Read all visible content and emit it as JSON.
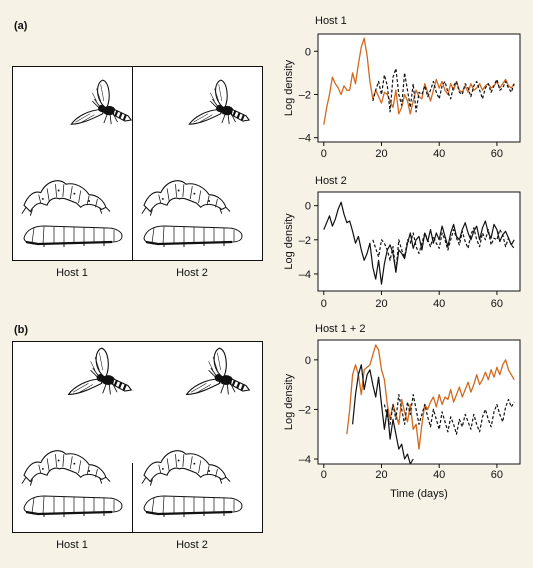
{
  "panels": {
    "a": {
      "label": "(a)",
      "cage_labels": [
        "Host 1",
        "Host 2"
      ]
    },
    "b": {
      "label": "(b)",
      "cage_labels": [
        "Host 1",
        "Host 2"
      ]
    }
  },
  "colors": {
    "background": "#f6f2e6",
    "host1": "#d2691e",
    "host2": "#111111",
    "parasitoid": "#111111"
  },
  "icons": [
    "parasitoid-wasp-icon",
    "caterpillar-host-icon",
    "grub-host-icon"
  ],
  "chart_data": [
    {
      "type": "line",
      "title": "Host 1",
      "xlabel": "",
      "ylabel": "Log density",
      "xlim": [
        -2,
        68
      ],
      "ylim": [
        -4.2,
        0.8
      ],
      "xticks": [
        0,
        20,
        40,
        60
      ],
      "yticks": [
        0,
        -2,
        -4
      ],
      "series": [
        {
          "style": "solid-orange",
          "x": [
            0,
            1,
            2,
            3,
            4,
            5,
            6,
            7,
            8,
            9,
            10,
            11,
            12,
            13,
            14,
            15,
            16,
            17,
            18,
            19,
            20,
            21,
            22,
            23,
            24,
            25,
            26,
            27,
            28,
            29,
            30,
            31,
            32,
            33,
            34,
            35,
            36,
            37,
            38,
            39,
            40,
            41,
            42,
            43,
            44,
            45,
            46,
            47,
            48,
            49,
            50,
            51,
            52,
            53,
            54,
            55,
            56,
            57,
            58,
            59,
            60,
            61,
            62,
            63,
            64,
            65,
            66
          ],
          "y": [
            -3.4,
            -2.6,
            -2.0,
            -1.2,
            -1.5,
            -1.7,
            -2.0,
            -1.6,
            -1.8,
            -1.8,
            -1.0,
            -1.5,
            -0.6,
            0.2,
            0.6,
            -0.2,
            -1.4,
            -2.2,
            -1.8,
            -2.1,
            -2.4,
            -1.9,
            -2.0,
            -2.3,
            -2.6,
            -1.8,
            -2.9,
            -2.6,
            -2.0,
            -2.3,
            -2.9,
            -2.3,
            -1.8,
            -2.1,
            -2.2,
            -1.5,
            -1.9,
            -2.3,
            -1.8,
            -1.3,
            -1.7,
            -1.4,
            -1.8,
            -2.0,
            -1.5,
            -1.8,
            -1.4,
            -1.8,
            -1.9,
            -1.6,
            -1.9,
            -1.5,
            -1.8,
            -1.7,
            -1.5,
            -1.8,
            -1.6,
            -1.5,
            -1.7,
            -1.6,
            -1.4,
            -1.7,
            -1.5,
            -1.3,
            -1.6,
            -1.7,
            -1.5
          ]
        },
        {
          "style": "dashed-black",
          "x": [
            17,
            18,
            19,
            20,
            21,
            22,
            23,
            24,
            25,
            26,
            27,
            28,
            29,
            30,
            31,
            32,
            33,
            34,
            35,
            36,
            37,
            38,
            39,
            40,
            41,
            42,
            43,
            44,
            45,
            46,
            47,
            48,
            49,
            50,
            51,
            52,
            53,
            54,
            55,
            56,
            57,
            58,
            59,
            60,
            61,
            62,
            63,
            64,
            65,
            66
          ],
          "y": [
            -2.3,
            -1.8,
            -1.4,
            -2.0,
            -1.1,
            -1.6,
            -2.8,
            -1.2,
            -0.8,
            -2.0,
            -2.5,
            -1.0,
            -1.8,
            -2.6,
            -1.5,
            -2.8,
            -1.9,
            -2.0,
            -1.6,
            -2.1,
            -1.8,
            -1.4,
            -1.9,
            -2.2,
            -1.6,
            -1.4,
            -1.9,
            -2.2,
            -1.6,
            -1.4,
            -1.9,
            -2.0,
            -1.5,
            -1.7,
            -2.1,
            -1.6,
            -1.4,
            -1.8,
            -2.2,
            -1.7,
            -1.5,
            -1.9,
            -1.6,
            -1.3,
            -1.8,
            -1.7,
            -1.4,
            -1.7,
            -1.9,
            -1.5
          ]
        }
      ]
    },
    {
      "type": "line",
      "title": "Host 2",
      "xlabel": "",
      "ylabel": "Log density",
      "xlim": [
        -2,
        68
      ],
      "ylim": [
        -5.0,
        0.8
      ],
      "xticks": [
        0,
        20,
        40,
        60
      ],
      "yticks": [
        0,
        -2,
        -4
      ],
      "series": [
        {
          "style": "solid-black",
          "x": [
            0,
            1,
            2,
            3,
            4,
            5,
            6,
            7,
            8,
            9,
            10,
            11,
            12,
            13,
            14,
            15,
            16,
            17,
            18,
            19,
            20,
            21,
            22,
            23,
            24,
            25,
            26,
            27,
            28,
            29,
            30,
            31,
            32,
            33,
            34,
            35,
            36,
            37,
            38,
            39,
            40,
            41,
            42,
            43,
            44,
            45,
            46,
            47,
            48,
            49,
            50,
            51,
            52,
            53,
            54,
            55,
            56,
            57,
            58,
            59,
            60,
            61,
            62,
            63,
            64,
            65,
            66
          ],
          "y": [
            -1.4,
            -1.0,
            -0.6,
            -1.2,
            -0.8,
            -0.2,
            0.2,
            -0.5,
            -1.0,
            -0.9,
            -1.5,
            -2.2,
            -1.8,
            -2.6,
            -3.2,
            -2.8,
            -2.2,
            -3.6,
            -4.3,
            -3.2,
            -4.6,
            -3.4,
            -2.6,
            -2.3,
            -2.8,
            -3.9,
            -2.6,
            -2.8,
            -3.1,
            -2.2,
            -1.6,
            -2.5,
            -2.0,
            -1.8,
            -2.6,
            -1.6,
            -2.1,
            -1.4,
            -2.2,
            -1.6,
            -2.0,
            -1.2,
            -1.8,
            -2.4,
            -1.6,
            -1.1,
            -1.8,
            -2.0,
            -1.4,
            -1.0,
            -1.6,
            -2.0,
            -1.5,
            -1.2,
            -2.0,
            -1.3,
            -0.9,
            -1.6,
            -1.9,
            -1.1,
            -1.4,
            -2.1,
            -1.7,
            -1.5,
            -1.9,
            -2.3,
            -2.0
          ]
        },
        {
          "style": "dashed-black",
          "x": [
            17,
            18,
            19,
            20,
            21,
            22,
            23,
            24,
            25,
            26,
            27,
            28,
            29,
            30,
            31,
            32,
            33,
            34,
            35,
            36,
            37,
            38,
            39,
            40,
            41,
            42,
            43,
            44,
            45,
            46,
            47,
            48,
            49,
            50,
            51,
            52,
            53,
            54,
            55,
            56,
            57,
            58,
            59,
            60,
            61,
            62,
            63,
            64,
            65,
            66
          ],
          "y": [
            -2.0,
            -2.5,
            -3.0,
            -2.0,
            -2.2,
            -2.6,
            -3.2,
            -2.4,
            -3.9,
            -2.0,
            -2.6,
            -3.0,
            -2.0,
            -2.2,
            -1.6,
            -2.4,
            -2.8,
            -2.2,
            -1.6,
            -2.0,
            -2.4,
            -1.8,
            -2.2,
            -2.5,
            -1.6,
            -2.0,
            -2.6,
            -2.0,
            -1.4,
            -1.9,
            -2.3,
            -1.5,
            -2.1,
            -2.5,
            -1.7,
            -1.3,
            -2.0,
            -2.4,
            -1.6,
            -2.0,
            -1.4,
            -2.3,
            -1.9,
            -2.0,
            -1.4,
            -1.7,
            -2.4,
            -1.9,
            -2.3,
            -2.5
          ]
        }
      ]
    },
    {
      "type": "line",
      "title": "Host 1 + 2",
      "xlabel": "Time (days)",
      "ylabel": "Log density",
      "xlim": [
        -2,
        68
      ],
      "ylim": [
        -4.2,
        0.8
      ],
      "xticks": [
        0,
        20,
        40,
        60
      ],
      "yticks": [
        0,
        -2,
        -4
      ],
      "series": [
        {
          "style": "solid-orange",
          "x": [
            8,
            9,
            10,
            11,
            12,
            13,
            14,
            15,
            16,
            17,
            18,
            19,
            20,
            21,
            22,
            23,
            24,
            25,
            26,
            27,
            28,
            29,
            30,
            31,
            32,
            33,
            34,
            35,
            36,
            37,
            38,
            39,
            40,
            41,
            42,
            43,
            44,
            45,
            46,
            47,
            48,
            49,
            50,
            51,
            52,
            53,
            54,
            55,
            56,
            57,
            58,
            59,
            60,
            61,
            62,
            63,
            64,
            65,
            66
          ],
          "y": [
            -3.0,
            -2.0,
            -0.6,
            -0.2,
            -0.6,
            -1.4,
            -0.4,
            -0.3,
            -0.2,
            0.2,
            0.6,
            0.4,
            -0.4,
            -0.8,
            -1.8,
            -2.4,
            -1.8,
            -2.2,
            -2.6,
            -1.6,
            -2.1,
            -2.5,
            -1.8,
            -2.8,
            -2.6,
            -3.6,
            -2.6,
            -1.8,
            -2.0,
            -1.7,
            -1.5,
            -1.9,
            -1.4,
            -1.8,
            -1.5,
            -1.6,
            -1.2,
            -1.7,
            -1.4,
            -1.1,
            -1.5,
            -1.2,
            -0.9,
            -1.3,
            -1.0,
            -0.6,
            -1.0,
            -0.8,
            -0.5,
            -0.8,
            -0.4,
            -0.7,
            -0.3,
            -0.6,
            -0.2,
            0.0,
            -0.4,
            -0.6,
            -0.8
          ]
        },
        {
          "style": "solid-black",
          "x": [
            10,
            11,
            12,
            13,
            14,
            15,
            16,
            17,
            18,
            19,
            20,
            21,
            22,
            23,
            24,
            25,
            26,
            27,
            28,
            29,
            30,
            31
          ],
          "y": [
            -2.6,
            -1.4,
            -0.6,
            -0.2,
            -1.2,
            -0.6,
            -0.4,
            -1.0,
            -1.5,
            -0.7,
            -1.8,
            -2.8,
            -2.0,
            -3.2,
            -2.4,
            -3.0,
            -3.6,
            -3.4,
            -4.0,
            -3.8,
            -4.2,
            -4.0
          ]
        },
        {
          "style": "dashed-black",
          "x": [
            21,
            22,
            23,
            24,
            25,
            26,
            27,
            28,
            29,
            30,
            31,
            32,
            33,
            34,
            35,
            36,
            37,
            38,
            39,
            40,
            41,
            42,
            43,
            44,
            45,
            46,
            47,
            48,
            49,
            50,
            51,
            52,
            53,
            54,
            55,
            56,
            57,
            58,
            59,
            60,
            61,
            62,
            63,
            64,
            65,
            66
          ],
          "y": [
            -1.8,
            -2.3,
            -2.6,
            -1.8,
            -2.4,
            -1.4,
            -2.0,
            -2.6,
            -1.7,
            -2.2,
            -1.4,
            -2.0,
            -2.6,
            -2.2,
            -1.8,
            -2.3,
            -2.7,
            -2.0,
            -2.4,
            -2.8,
            -2.1,
            -2.5,
            -2.9,
            -2.3,
            -2.6,
            -3.0,
            -2.4,
            -2.7,
            -2.2,
            -2.5,
            -2.8,
            -2.2,
            -2.6,
            -2.9,
            -2.3,
            -2.0,
            -2.4,
            -2.7,
            -2.1,
            -1.8,
            -2.2,
            -2.5,
            -1.9,
            -1.6,
            -1.9,
            -1.7
          ]
        }
      ]
    }
  ]
}
